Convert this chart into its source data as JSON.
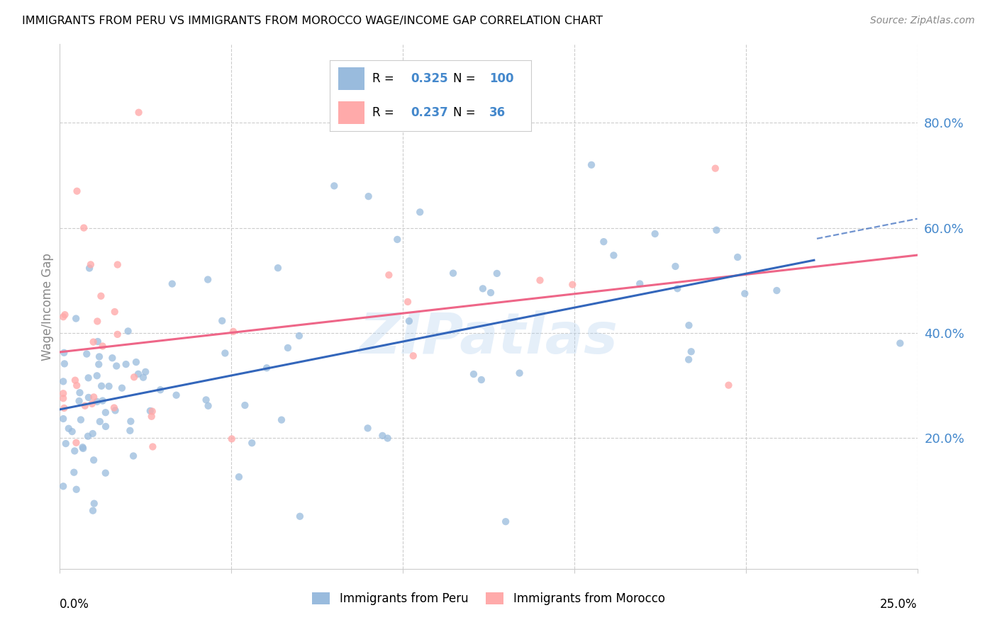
{
  "title": "IMMIGRANTS FROM PERU VS IMMIGRANTS FROM MOROCCO WAGE/INCOME GAP CORRELATION CHART",
  "source": "Source: ZipAtlas.com",
  "ylabel": "Wage/Income Gap",
  "right_yticklabels": [
    "20.0%",
    "40.0%",
    "60.0%",
    "80.0%"
  ],
  "right_ytick_vals": [
    0.2,
    0.4,
    0.6,
    0.8
  ],
  "legend_peru": "Immigrants from Peru",
  "legend_morocco": "Immigrants from Morocco",
  "R_peru": 0.325,
  "N_peru": 100,
  "R_morocco": 0.237,
  "N_morocco": 36,
  "color_peru": "#99BBDD",
  "color_morocco": "#FFAAAA",
  "color_peru_line": "#3366BB",
  "color_morocco_line": "#EE6688",
  "color_right_axis": "#4488CC",
  "watermark": "ZIPatlas",
  "xlim": [
    0.0,
    0.25
  ],
  "ylim": [
    -0.05,
    0.95
  ],
  "peru_intercept": 0.265,
  "peru_slope": 1.1,
  "morocco_intercept": 0.28,
  "morocco_slope": 1.4,
  "dashed_intercept": 0.27,
  "dashed_slope": 1.45
}
